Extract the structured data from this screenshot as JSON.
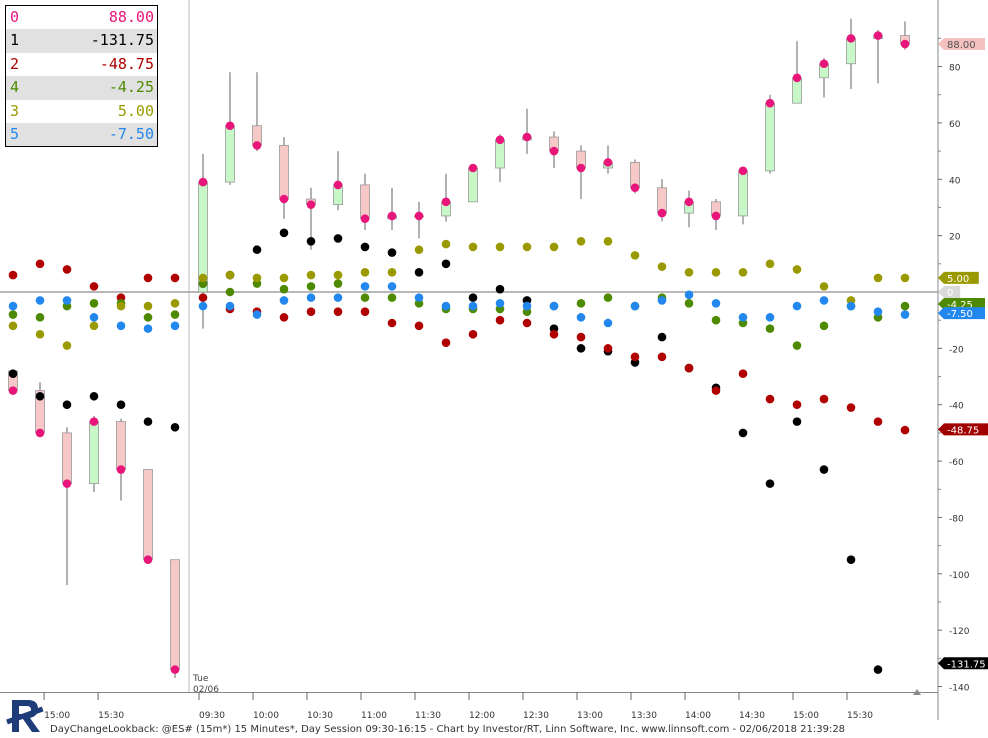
{
  "legend": [
    {
      "id": "0",
      "value": "88.00",
      "color": "#e8157a"
    },
    {
      "id": "1",
      "value": "-131.75",
      "color": "#000000"
    },
    {
      "id": "2",
      "value": "-48.75",
      "color": "#b00000"
    },
    {
      "id": "4",
      "value": "-4.25",
      "color": "#4d8a00"
    },
    {
      "id": "3",
      "value": "5.00",
      "color": "#9a9a00"
    },
    {
      "id": "5",
      "value": "-7.50",
      "color": "#2288ee"
    }
  ],
  "footer_text": "DayChangeLookback: @ES# (15m*) 15 Minutes*, Day Session 09:30-16:15 - Chart by Investor/RT, Linn Software, Inc. www.linnsoft.com - 02/06/2018 21:39:28",
  "session_label": {
    "day": "Tue",
    "date": "02/06"
  },
  "chart_data": {
    "type": "candlestick",
    "ylim": [
      -144,
      100
    ],
    "y_ticks": [
      80,
      60,
      40,
      20,
      0,
      -20,
      -40,
      -60,
      -80,
      -100,
      -120,
      -140
    ],
    "zero_line": 0,
    "x_ticks": [
      "15:00",
      "15:30",
      "09:30",
      "10:00",
      "10:30",
      "11:00",
      "11:30",
      "12:00",
      "12:30",
      "13:00",
      "13:30",
      "14:00",
      "14:30",
      "15:00",
      "15:30"
    ],
    "candles": [
      {
        "o": -28,
        "c": -35,
        "h": -28,
        "l": -36
      },
      {
        "o": -35,
        "c": -50,
        "h": -32,
        "l": -50
      },
      {
        "o": -50,
        "c": -68,
        "h": -48,
        "l": -104
      },
      {
        "o": -68,
        "c": -46,
        "h": -44,
        "l": -71
      },
      {
        "o": -46,
        "c": -63,
        "h": -45,
        "l": -74
      },
      {
        "o": -63,
        "c": -95,
        "h": -63,
        "l": -96
      },
      {
        "o": -95,
        "c": -134,
        "h": -95,
        "l": -137
      },
      {
        "o": 0,
        "c": 39,
        "h": 49,
        "l": -13
      },
      {
        "o": 39,
        "c": 59,
        "h": 78,
        "l": 38
      },
      {
        "o": 59,
        "c": 52,
        "h": 78,
        "l": 50
      },
      {
        "o": 52,
        "c": 33,
        "h": 55,
        "l": 26
      },
      {
        "o": 33,
        "c": 31,
        "h": 37,
        "l": 15
      },
      {
        "o": 31,
        "c": 38,
        "h": 50,
        "l": 29
      },
      {
        "o": 38,
        "c": 26,
        "h": 42,
        "l": 22
      },
      {
        "o": 26,
        "c": 27,
        "h": 37,
        "l": 22
      },
      {
        "o": 27,
        "c": 27,
        "h": 32,
        "l": 19
      },
      {
        "o": 27,
        "c": 32,
        "h": 42,
        "l": 25
      },
      {
        "o": 32,
        "c": 44,
        "h": 45,
        "l": 32
      },
      {
        "o": 44,
        "c": 54,
        "h": 56,
        "l": 39
      },
      {
        "o": 54,
        "c": 55,
        "h": 65,
        "l": 49
      },
      {
        "o": 55,
        "c": 50,
        "h": 57,
        "l": 44
      },
      {
        "o": 50,
        "c": 44,
        "h": 52,
        "l": 33
      },
      {
        "o": 44,
        "c": 46,
        "h": 52,
        "l": 42
      },
      {
        "o": 46,
        "c": 37,
        "h": 47,
        "l": 35
      },
      {
        "o": 37,
        "c": 28,
        "h": 40,
        "l": 25
      },
      {
        "o": 28,
        "c": 32,
        "h": 36,
        "l": 23
      },
      {
        "o": 32,
        "c": 27,
        "h": 33,
        "l": 22
      },
      {
        "o": 27,
        "c": 43,
        "h": 44,
        "l": 24
      },
      {
        "o": 43,
        "c": 67,
        "h": 70,
        "l": 42
      },
      {
        "o": 67,
        "c": 76,
        "h": 89,
        "l": 67
      },
      {
        "o": 76,
        "c": 81,
        "h": 83,
        "l": 69
      },
      {
        "o": 81,
        "c": 90,
        "h": 97,
        "l": 72
      },
      {
        "o": 90,
        "c": 91,
        "h": 93,
        "l": 74
      },
      {
        "o": 91,
        "c": 88,
        "h": 96,
        "l": 86
      }
    ],
    "series": [
      {
        "name": "0",
        "color": "#e8157a",
        "values": [
          -35,
          -50,
          -68,
          -46,
          -63,
          -95,
          -134,
          39,
          59,
          52,
          33,
          31,
          38,
          26,
          27,
          27,
          32,
          44,
          54,
          55,
          50,
          44,
          46,
          37,
          28,
          32,
          27,
          43,
          67,
          76,
          81,
          90,
          91,
          88
        ]
      },
      {
        "name": "1",
        "color": "#000000",
        "values": [
          -29,
          -37,
          -40,
          -37,
          -40,
          -46,
          -48,
          3,
          6,
          15,
          21,
          18,
          19,
          16,
          14,
          7,
          10,
          -2,
          1,
          -3,
          -13,
          -20,
          -21,
          -25,
          -16,
          -27,
          -34,
          -50,
          -68,
          -46,
          -63,
          -95,
          -134,
          null
        ]
      },
      {
        "name": "2",
        "color": "#b00000",
        "values": [
          6,
          10,
          8,
          2,
          -2,
          5,
          5,
          -2,
          -6,
          -7,
          -9,
          -7,
          -7,
          -7,
          -11,
          -12,
          -18,
          -15,
          -10,
          -11,
          -15,
          -16,
          -20,
          -23,
          -23,
          -27,
          -35,
          -29,
          -38,
          -40,
          -38,
          -41,
          -46,
          -49
        ]
      },
      {
        "name": "4",
        "color": "#4d8a00",
        "values": [
          -8,
          -9,
          -5,
          -4,
          -4,
          -9,
          -8,
          3,
          0,
          3,
          1,
          2,
          3,
          -2,
          -2,
          -4,
          -6,
          -6,
          -6,
          -7,
          -5,
          -4,
          -2,
          -5,
          -2,
          -4,
          -10,
          -11,
          -13,
          -19,
          -12,
          -5,
          -9,
          -5
        ]
      },
      {
        "name": "3",
        "color": "#9a9a00",
        "values": [
          -12,
          -15,
          -19,
          -12,
          -5,
          -5,
          -4,
          5,
          6,
          5,
          5,
          6,
          6,
          7,
          7,
          15,
          17,
          16,
          16,
          16,
          16,
          18,
          18,
          13,
          9,
          7,
          7,
          7,
          10,
          8,
          2,
          -3,
          5,
          5
        ]
      },
      {
        "name": "5",
        "color": "#2288ee",
        "values": [
          -5,
          -3,
          -3,
          -9,
          -12,
          -13,
          -12,
          -5,
          -5,
          -8,
          -3,
          -2,
          -2,
          2,
          2,
          -2,
          -5,
          -5,
          -4,
          -5,
          -5,
          -9,
          -11,
          -5,
          -3,
          -1,
          -4,
          -9,
          -9,
          -5,
          -3,
          -5,
          -7,
          -8
        ]
      }
    ],
    "price_tags": [
      {
        "label": "88.00",
        "value": 88,
        "bg": "#f4c0c0",
        "fg": "#555555"
      },
      {
        "label": "5.00",
        "value": 5,
        "bg": "#9a9a00",
        "fg": "#ffffff"
      },
      {
        "label": "0",
        "value": 0,
        "bg": "#d9d9d9",
        "fg": "#ffffff"
      },
      {
        "label": "-4.25",
        "value": -4.25,
        "bg": "#4d8a00",
        "fg": "#ffffff"
      },
      {
        "label": "-7.50",
        "value": -7.5,
        "bg": "#2288ee",
        "fg": "#ffffff"
      },
      {
        "label": "-48.75",
        "value": -48.75,
        "bg": "#a00000",
        "fg": "#ffffff"
      },
      {
        "label": "-131.75",
        "value": -131.75,
        "bg": "#000000",
        "fg": "#ffffff"
      }
    ]
  }
}
